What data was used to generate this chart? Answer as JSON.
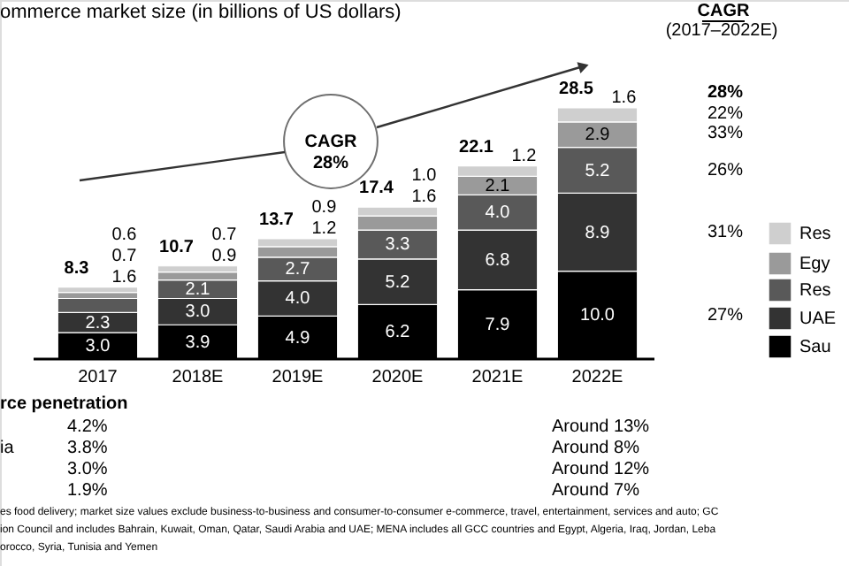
{
  "chart_data": {
    "type": "bar",
    "title": "ommerce market size (in billions of US dollars)",
    "stacked": true,
    "legend": "right",
    "categories": [
      "2017",
      "2018E",
      "2019E",
      "2020E",
      "2021E",
      "2022E"
    ],
    "series": [
      {
        "name": "Sau",
        "color": "#000000",
        "values": [
          3.0,
          3.9,
          4.9,
          6.2,
          7.9,
          10.0
        ],
        "value_labels": [
          "3.0",
          "3.9",
          "4.9",
          "6.2",
          "7.9",
          "10.0"
        ]
      },
      {
        "name": "UAE",
        "color": "#333333",
        "values": [
          2.3,
          3.0,
          4.0,
          5.2,
          6.8,
          8.9
        ],
        "value_labels": [
          "2.3",
          "3.0",
          "4.0",
          "5.2",
          "6.8",
          "8.9"
        ]
      },
      {
        "name": "Res",
        "color": "#595959",
        "values": [
          1.6,
          2.1,
          2.7,
          3.3,
          4.0,
          5.2
        ],
        "value_labels": [
          "1.6",
          "2.1",
          "2.7",
          "3.3",
          "4.0",
          "5.2"
        ]
      },
      {
        "name": "Egy",
        "color": "#9a9a9a",
        "values": [
          0.7,
          0.9,
          1.2,
          1.6,
          2.1,
          2.9
        ],
        "value_labels": [
          "0.7",
          "0.9",
          "1.2",
          "1.6",
          "2.1",
          "2.9"
        ]
      },
      {
        "name": "Res",
        "color": "#cfcfcf",
        "values": [
          0.6,
          0.7,
          0.9,
          1.0,
          1.2,
          1.6
        ],
        "value_labels": [
          "0.6",
          "0.7",
          "0.9",
          "1.0",
          "1.2",
          "1.6"
        ]
      }
    ],
    "totals": [
      "8.3",
      "10.7",
      "13.7",
      "17.4",
      "22.1",
      "28.5"
    ],
    "annotations": [
      "CAGR\n28%",
      "CAGR",
      "(2017–2022E)",
      "28%",
      "22%",
      "33%",
      "26%",
      "31%",
      "27%",
      "rce penetration",
      "4.2%",
      "ia",
      "3.8%",
      "3.0%",
      "1.9%",
      "Around 13%",
      "Around 8%",
      "Around 12%",
      "Around 7%",
      "es food delivery; market size values exclude business-to-business and consumer-to-consumer e-commerce, travel, entertainment, services and auto; GC",
      "ion Council and includes Bahrain, Kuwait, Oman, Qatar, Saudi Arabia and UAE; MENA includes all GCC countries and Egypt, Algeria, Iraq, Jordan, Leba",
      "orocco, Syria, Tunisia and Yemen"
    ]
  }
}
